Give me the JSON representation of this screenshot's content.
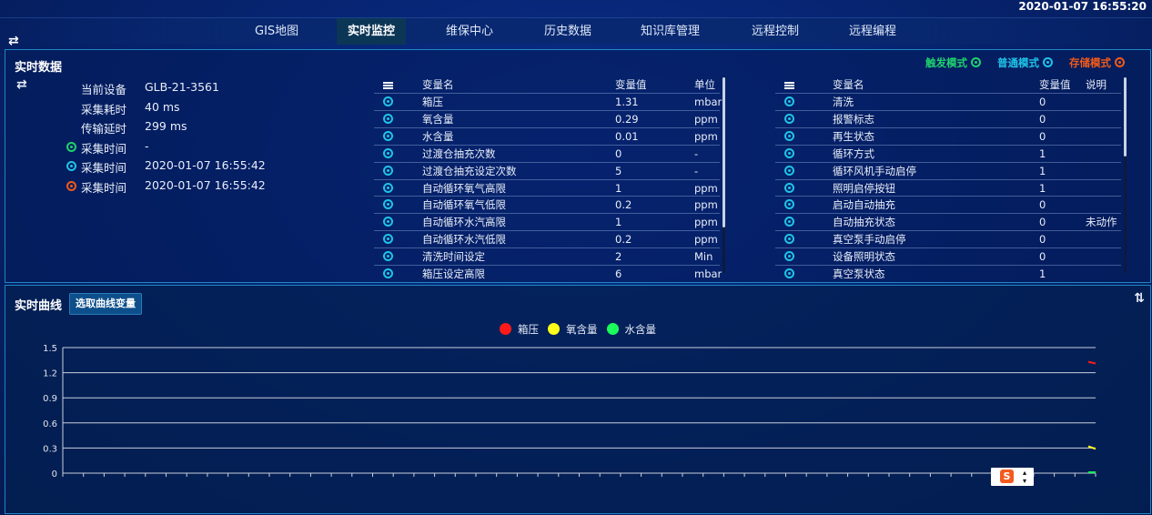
{
  "header": {
    "datetime": "2020-01-07 16:55:20",
    "tabs": [
      {
        "label": "GIS地图",
        "active": false
      },
      {
        "label": "实时监控",
        "active": true
      },
      {
        "label": "维保中心",
        "active": false
      },
      {
        "label": "历史数据",
        "active": false
      },
      {
        "label": "知识库管理",
        "active": false
      },
      {
        "label": "远程控制",
        "active": false
      },
      {
        "label": "远程编程",
        "active": false
      }
    ]
  },
  "realtime": {
    "title": "实时数据",
    "modes": [
      {
        "label": "触发模式",
        "color": "#1fd16d"
      },
      {
        "label": "普通模式",
        "color": "#1fc3e8"
      },
      {
        "label": "存储模式",
        "color": "#f05a1a"
      }
    ],
    "info": [
      {
        "key": "当前设备",
        "value": "GLB-21-3561"
      },
      {
        "key": "采集耗时",
        "value": "40 ms"
      },
      {
        "key": "传输延时",
        "value": "299 ms"
      },
      {
        "key": "采集时间",
        "value": "-",
        "mode_color": "#1fd16d"
      },
      {
        "key": "采集时间",
        "value": "2020-01-07 16:55:42",
        "mode_color": "#1fc3e8"
      },
      {
        "key": "采集时间",
        "value": "2020-01-07 16:55:42",
        "mode_color": "#f05a1a"
      }
    ],
    "table1": {
      "headers": [
        "变量名",
        "变量值",
        "单位"
      ],
      "rows": [
        [
          "箱压",
          "1.31",
          "mbar"
        ],
        [
          "氧含量",
          "0.29",
          "ppm"
        ],
        [
          "水含量",
          "0.01",
          "ppm"
        ],
        [
          "过渡仓抽充次数",
          "0",
          "-"
        ],
        [
          "过渡仓抽充设定次数",
          "5",
          "-"
        ],
        [
          "自动循环氧气高限",
          "1",
          "ppm"
        ],
        [
          "自动循环氧气低限",
          "0.2",
          "ppm"
        ],
        [
          "自动循环水汽高限",
          "1",
          "ppm"
        ],
        [
          "自动循环水汽低限",
          "0.2",
          "ppm"
        ],
        [
          "清洗时间设定",
          "2",
          "Min"
        ],
        [
          "箱压设定高限",
          "6",
          "mbar"
        ]
      ]
    },
    "table2": {
      "headers": [
        "变量名",
        "变量值",
        "说明"
      ],
      "rows": [
        [
          "清洗",
          "0",
          ""
        ],
        [
          "报警标志",
          "0",
          ""
        ],
        [
          "再生状态",
          "0",
          ""
        ],
        [
          "循环方式",
          "1",
          ""
        ],
        [
          "循环风机手动启停",
          "1",
          ""
        ],
        [
          "照明启停按钮",
          "1",
          ""
        ],
        [
          "启动自动抽充",
          "0",
          ""
        ],
        [
          "自动抽充状态",
          "0",
          "未动作"
        ],
        [
          "真空泵手动启停",
          "0",
          ""
        ],
        [
          "设备照明状态",
          "0",
          ""
        ],
        [
          "真空泵状态",
          "1",
          ""
        ]
      ]
    }
  },
  "curve": {
    "title": "实时曲线",
    "select_button": "选取曲线变量"
  },
  "chart_data": {
    "type": "line",
    "ylim": [
      0,
      1.5
    ],
    "yticks": [
      "0",
      "0.3",
      "0.6",
      "0.9",
      "1.2",
      "1.5"
    ],
    "grid": true,
    "legend_placement": "top-center",
    "series": [
      {
        "name": "箱压",
        "color": "#ff1a1a",
        "values": [
          1.33,
          1.31
        ]
      },
      {
        "name": "氧含量",
        "color": "#ffff1a",
        "values": [
          0.32,
          0.29
        ]
      },
      {
        "name": "水含量",
        "color": "#1aff5a",
        "values": [
          0.01,
          0.01
        ]
      }
    ]
  }
}
